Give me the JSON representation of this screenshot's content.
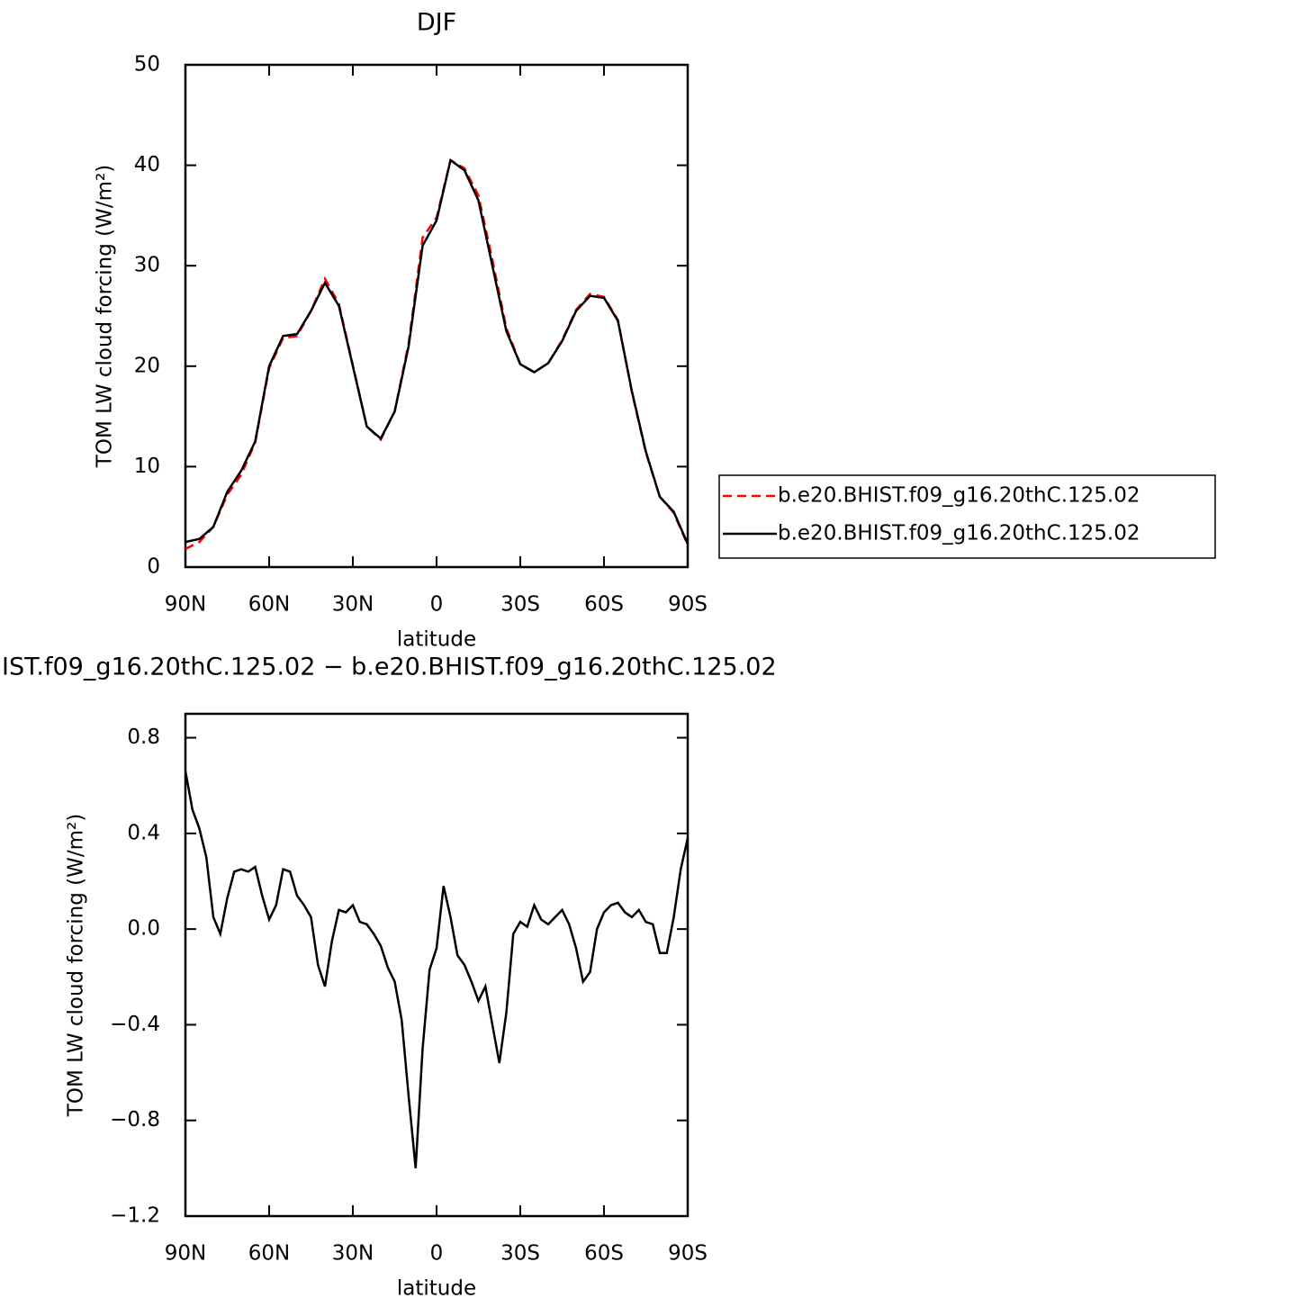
{
  "chart_data": [
    {
      "type": "line",
      "title": "DJF",
      "xlabel": "latitude",
      "ylabel": "TOM LW cloud forcing (W/m²)",
      "x": [
        90,
        85,
        80,
        75,
        70,
        65,
        60,
        55,
        50,
        45,
        40,
        35,
        30,
        25,
        20,
        15,
        10,
        5,
        0,
        -5,
        -10,
        -15,
        -20,
        -25,
        -30,
        -35,
        -40,
        -45,
        -50,
        -55,
        -60,
        -65,
        -70,
        -75,
        -80,
        -85,
        -90
      ],
      "xlim": [
        90,
        -90
      ],
      "xticks": [
        {
          "value": 90,
          "label": "90N"
        },
        {
          "value": 60,
          "label": "60N"
        },
        {
          "value": 30,
          "label": "30N"
        },
        0,
        {
          "value": -30,
          "label": "30S"
        },
        {
          "value": -60,
          "label": "60S"
        },
        {
          "value": -90,
          "label": "90S"
        }
      ],
      "ylim": [
        0,
        50
      ],
      "yticks": [
        0,
        10,
        20,
        30,
        40,
        50
      ],
      "legend": "right",
      "series": [
        {
          "name": "b.e20.BHIST.f09_g16.20thC.125.02",
          "color": "#ff0000",
          "linestyle": "dashed",
          "values": [
            1.8,
            2.5,
            4.0,
            7.2,
            9.2,
            12.4,
            19.8,
            22.8,
            23.0,
            25.5,
            28.7,
            26.2,
            20.1,
            14.0,
            12.7,
            15.5,
            22.3,
            32.8,
            34.8,
            40.5,
            39.7,
            37.0,
            30.6,
            23.8,
            20.2,
            19.4,
            20.3,
            22.6,
            25.6,
            27.2,
            26.9,
            24.6,
            17.4,
            11.4,
            7.0,
            5.4,
            2.2
          ]
        },
        {
          "name": "b.e20.BHIST.f09_g16.20thC.125.02",
          "color": "#000000",
          "linestyle": "solid",
          "values": [
            2.5,
            2.8,
            4.0,
            7.5,
            9.6,
            12.5,
            20.0,
            23.0,
            23.2,
            25.5,
            28.3,
            26.0,
            20.0,
            14.0,
            12.8,
            15.5,
            22.0,
            32.0,
            34.5,
            40.5,
            39.5,
            36.5,
            30.0,
            23.5,
            20.2,
            19.4,
            20.3,
            22.5,
            25.5,
            27.0,
            26.8,
            24.5,
            17.5,
            11.5,
            7.0,
            5.5,
            2.3
          ]
        }
      ]
    },
    {
      "type": "line",
      "title": "IST.f09_g16.20thC.125.02 − b.e20.BHIST.f09_g16.20thC.125.02",
      "xlabel": "latitude",
      "ylabel": "TOM LW cloud forcing (W/m²)",
      "x": [
        90,
        87.5,
        85,
        82.5,
        80,
        77.5,
        75,
        72.5,
        70,
        67.5,
        65,
        62.5,
        60,
        57.5,
        55,
        52.5,
        50,
        47.5,
        45,
        42.5,
        40,
        37.5,
        35,
        32.5,
        30,
        27.5,
        25,
        22.5,
        20,
        17.5,
        15,
        12.5,
        10,
        7.5,
        5,
        2.5,
        0,
        -2.5,
        -5,
        -7.5,
        -10,
        -12.5,
        -15,
        -17.5,
        -20,
        -22.5,
        -25,
        -27.5,
        -30,
        -32.5,
        -35,
        -37.5,
        -40,
        -42.5,
        -45,
        -47.5,
        -50,
        -52.5,
        -55,
        -57.5,
        -60,
        -62.5,
        -65,
        -67.5,
        -70,
        -72.5,
        -75,
        -77.5,
        -80,
        -82.5,
        -85,
        -87.5,
        -90
      ],
      "xlim": [
        90,
        -90
      ],
      "xticks": [
        {
          "value": 90,
          "label": "90N"
        },
        {
          "value": 60,
          "label": "60N"
        },
        {
          "value": 30,
          "label": "30N"
        },
        0,
        {
          "value": -30,
          "label": "30S"
        },
        {
          "value": -60,
          "label": "60S"
        },
        {
          "value": -90,
          "label": "90S"
        }
      ],
      "ylim": [
        -1.2,
        0.9
      ],
      "yticks": [
        {
          "value": -1.2,
          "label": "−1.2"
        },
        {
          "value": -0.8,
          "label": "−0.8"
        },
        {
          "value": -0.4,
          "label": "−0.4"
        },
        {
          "value": 0,
          "label": "0.0"
        },
        0.4,
        0.8
      ],
      "series": [
        {
          "color": "#000000",
          "linestyle": "solid",
          "values": [
            0.66,
            0.5,
            0.42,
            0.3,
            0.05,
            -0.02,
            0.13,
            0.24,
            0.25,
            0.24,
            0.26,
            0.14,
            0.04,
            0.1,
            0.25,
            0.24,
            0.14,
            0.1,
            0.05,
            -0.15,
            -0.24,
            -0.05,
            0.08,
            0.07,
            0.1,
            0.03,
            0.02,
            -0.02,
            -0.07,
            -0.16,
            -0.22,
            -0.38,
            -0.7,
            -1.0,
            -0.5,
            -0.17,
            -0.08,
            0.18,
            0.05,
            -0.11,
            -0.15,
            -0.22,
            -0.3,
            -0.24,
            -0.4,
            -0.56,
            -0.35,
            -0.02,
            0.03,
            0.01,
            0.1,
            0.04,
            0.02,
            0.05,
            0.08,
            0.02,
            -0.08,
            -0.22,
            -0.18,
            0.0,
            0.07,
            0.1,
            0.11,
            0.07,
            0.05,
            0.08,
            0.03,
            0.02,
            -0.1,
            -0.1,
            0.05,
            0.25,
            0.38
          ]
        }
      ]
    }
  ]
}
